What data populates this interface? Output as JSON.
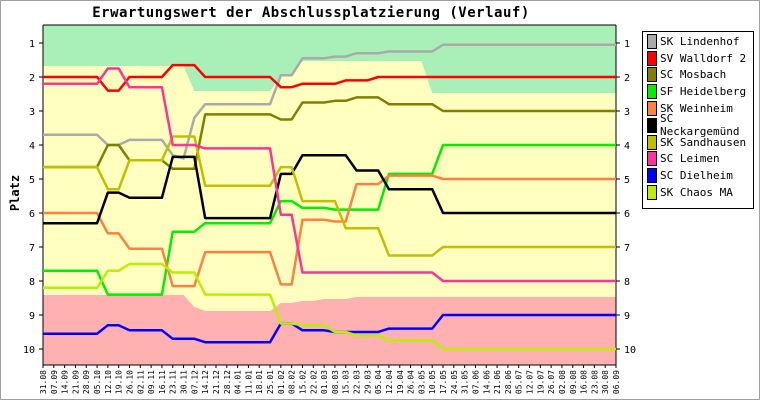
{
  "chart_data": {
    "type": "line",
    "title": "Erwartungswert der Abschlussplatzierung (Verlauf)",
    "ylabel": "Platz",
    "xlabel": "",
    "ylim": [
      1,
      10
    ],
    "y_inverted": true,
    "y_ticks": [
      "1",
      "2",
      "3",
      "4",
      "5",
      "6",
      "7",
      "8",
      "9",
      "10"
    ],
    "grid": false,
    "legend_position": "right",
    "zones": [
      {
        "color": "#a8f0b8",
        "from_y": 0.5,
        "to_y": "top_band"
      },
      {
        "color": "#ffffc0",
        "note": "mid band"
      },
      {
        "color": "#ffb0b0",
        "from_y": "bottom_band",
        "to_y": 10.5
      }
    ],
    "x": [
      "31.08",
      "07.09",
      "14.09",
      "21.09",
      "28.09",
      "05.10",
      "12.10",
      "19.10",
      "26.10",
      "02.11",
      "09.11",
      "16.11",
      "23.11",
      "30.11",
      "07.12",
      "14.12",
      "21.12",
      "28.12",
      "04.01",
      "11.01",
      "18.01",
      "25.01",
      "01.02",
      "08.02",
      "15.02",
      "22.02",
      "01.03",
      "08.03",
      "15.03",
      "22.03",
      "29.03",
      "05.04",
      "12.04",
      "19.04",
      "26.04",
      "03.05",
      "10.05",
      "17.05",
      "24.05",
      "31.05",
      "07.06",
      "14.06",
      "21.06",
      "28.06",
      "05.07",
      "12.07",
      "19.07",
      "26.07",
      "02.08",
      "09.08",
      "16.08",
      "23.08",
      "30.08",
      "06.09"
    ],
    "series": [
      {
        "name": "SK Lindenhof",
        "color": "#aaaaaa",
        "values": [
          3.7,
          3.7,
          3.7,
          3.7,
          3.7,
          3.7,
          4.0,
          4.0,
          3.85,
          3.85,
          3.85,
          3.85,
          4.3,
          4.4,
          3.2,
          2.8,
          2.8,
          2.8,
          2.8,
          2.8,
          2.8,
          2.8,
          1.95,
          1.95,
          1.45,
          1.45,
          1.45,
          1.4,
          1.4,
          1.3,
          1.3,
          1.3,
          1.25,
          1.25,
          1.25,
          1.25,
          1.25,
          1.05,
          1.05,
          1.05,
          1.05,
          1.05,
          1.05,
          1.05,
          1.05,
          1.05,
          1.05,
          1.05,
          1.05,
          1.05,
          1.05,
          1.05,
          1.05,
          1.05
        ]
      },
      {
        "name": "SV Walldorf 2",
        "color": "#ff0000",
        "values": [
          2.0,
          2.0,
          2.0,
          2.0,
          2.0,
          2.0,
          2.4,
          2.4,
          2.0,
          2.0,
          2.0,
          2.0,
          1.65,
          1.65,
          1.65,
          2.0,
          2.0,
          2.0,
          2.0,
          2.0,
          2.0,
          2.0,
          2.3,
          2.3,
          2.2,
          2.2,
          2.2,
          2.2,
          2.1,
          2.1,
          2.1,
          2.0,
          2.0,
          2.0,
          2.0,
          2.0,
          2.0,
          2.0,
          2.0,
          2.0,
          2.0,
          2.0,
          2.0,
          2.0,
          2.0,
          2.0,
          2.0,
          2.0,
          2.0,
          2.0,
          2.0,
          2.0,
          2.0,
          2.0
        ]
      },
      {
        "name": "SC Mosbach",
        "color": "#808000",
        "values": [
          4.65,
          4.65,
          4.65,
          4.65,
          4.65,
          4.65,
          4.0,
          4.0,
          4.45,
          4.45,
          4.45,
          4.45,
          4.7,
          4.7,
          4.7,
          3.1,
          3.1,
          3.1,
          3.1,
          3.1,
          3.1,
          3.1,
          3.25,
          3.25,
          2.75,
          2.75,
          2.75,
          2.7,
          2.7,
          2.6,
          2.6,
          2.6,
          2.8,
          2.8,
          2.8,
          2.8,
          2.8,
          3.0,
          3.0,
          3.0,
          3.0,
          3.0,
          3.0,
          3.0,
          3.0,
          3.0,
          3.0,
          3.0,
          3.0,
          3.0,
          3.0,
          3.0,
          3.0,
          3.0
        ]
      },
      {
        "name": "SF Heidelberg",
        "color": "#00ee00",
        "values": [
          7.7,
          7.7,
          7.7,
          7.7,
          7.7,
          7.7,
          8.4,
          8.4,
          8.4,
          8.4,
          8.4,
          8.4,
          6.55,
          6.55,
          6.55,
          6.3,
          6.3,
          6.3,
          6.3,
          6.3,
          6.3,
          6.3,
          5.65,
          5.65,
          5.85,
          5.85,
          5.85,
          5.9,
          5.9,
          5.9,
          5.9,
          5.9,
          4.85,
          4.85,
          4.85,
          4.85,
          4.85,
          4.0,
          4.0,
          4.0,
          4.0,
          4.0,
          4.0,
          4.0,
          4.0,
          4.0,
          4.0,
          4.0,
          4.0,
          4.0,
          4.0,
          4.0,
          4.0,
          4.0
        ]
      },
      {
        "name": "SK Weinheim",
        "color": "#ff8040",
        "values": [
          6.0,
          6.0,
          6.0,
          6.0,
          6.0,
          6.0,
          6.6,
          6.6,
          7.05,
          7.05,
          7.05,
          7.05,
          8.15,
          8.15,
          8.15,
          7.15,
          7.15,
          7.15,
          7.15,
          7.15,
          7.15,
          7.15,
          8.1,
          8.1,
          6.2,
          6.2,
          6.2,
          6.25,
          6.25,
          5.15,
          5.15,
          5.15,
          4.9,
          4.9,
          4.9,
          4.9,
          4.9,
          5.0,
          5.0,
          5.0,
          5.0,
          5.0,
          5.0,
          5.0,
          5.0,
          5.0,
          5.0,
          5.0,
          5.0,
          5.0,
          5.0,
          5.0,
          5.0,
          5.0
        ]
      },
      {
        "name": "SC Neckargemünd",
        "color": "#000000",
        "values": [
          6.3,
          6.3,
          6.3,
          6.3,
          6.3,
          6.3,
          5.4,
          5.4,
          5.55,
          5.55,
          5.55,
          5.55,
          4.35,
          4.35,
          4.35,
          6.15,
          6.15,
          6.15,
          6.15,
          6.15,
          6.15,
          6.15,
          4.85,
          4.85,
          4.3,
          4.3,
          4.3,
          4.3,
          4.3,
          4.75,
          4.75,
          4.75,
          5.3,
          5.3,
          5.3,
          5.3,
          5.3,
          6.0,
          6.0,
          6.0,
          6.0,
          6.0,
          6.0,
          6.0,
          6.0,
          6.0,
          6.0,
          6.0,
          6.0,
          6.0,
          6.0,
          6.0,
          6.0,
          6.0
        ]
      },
      {
        "name": "SK Sandhausen",
        "color": "#c0c000",
        "values": [
          4.65,
          4.65,
          4.65,
          4.65,
          4.65,
          4.65,
          5.3,
          5.3,
          4.45,
          4.45,
          4.45,
          4.45,
          3.75,
          3.75,
          3.75,
          5.2,
          5.2,
          5.2,
          5.2,
          5.2,
          5.2,
          5.2,
          4.65,
          4.65,
          5.65,
          5.65,
          5.65,
          5.65,
          6.45,
          6.45,
          6.45,
          6.45,
          7.25,
          7.25,
          7.25,
          7.25,
          7.25,
          7.0,
          7.0,
          7.0,
          7.0,
          7.0,
          7.0,
          7.0,
          7.0,
          7.0,
          7.0,
          7.0,
          7.0,
          7.0,
          7.0,
          7.0,
          7.0,
          7.0
        ]
      },
      {
        "name": "SC Leimen",
        "color": "#ff3399",
        "values": [
          2.2,
          2.2,
          2.2,
          2.2,
          2.2,
          2.2,
          1.75,
          1.75,
          2.3,
          2.3,
          2.3,
          2.3,
          4.0,
          4.0,
          4.0,
          4.1,
          4.1,
          4.1,
          4.1,
          4.1,
          4.1,
          4.1,
          6.05,
          6.05,
          7.75,
          7.75,
          7.75,
          7.75,
          7.75,
          7.75,
          7.75,
          7.75,
          7.75,
          7.75,
          7.75,
          7.75,
          7.75,
          8.0,
          8.0,
          8.0,
          8.0,
          8.0,
          8.0,
          8.0,
          8.0,
          8.0,
          8.0,
          8.0,
          8.0,
          8.0,
          8.0,
          8.0,
          8.0,
          8.0
        ]
      },
      {
        "name": "SC Dielheim",
        "color": "#0000ff",
        "values": [
          9.55,
          9.55,
          9.55,
          9.55,
          9.55,
          9.55,
          9.3,
          9.3,
          9.45,
          9.45,
          9.45,
          9.45,
          9.7,
          9.7,
          9.7,
          9.8,
          9.8,
          9.8,
          9.8,
          9.8,
          9.8,
          9.8,
          9.25,
          9.25,
          9.45,
          9.45,
          9.45,
          9.5,
          9.5,
          9.5,
          9.5,
          9.5,
          9.4,
          9.4,
          9.4,
          9.4,
          9.4,
          9.0,
          9.0,
          9.0,
          9.0,
          9.0,
          9.0,
          9.0,
          9.0,
          9.0,
          9.0,
          9.0,
          9.0,
          9.0,
          9.0,
          9.0,
          9.0,
          9.0
        ]
      },
      {
        "name": "SK Chaos MA",
        "color": "#bbee00",
        "values": [
          8.2,
          8.2,
          8.2,
          8.2,
          8.2,
          8.2,
          7.7,
          7.7,
          7.5,
          7.5,
          7.5,
          7.5,
          7.75,
          7.75,
          7.75,
          8.4,
          8.4,
          8.4,
          8.4,
          8.4,
          8.4,
          8.4,
          9.25,
          9.25,
          9.3,
          9.3,
          9.3,
          9.5,
          9.5,
          9.6,
          9.6,
          9.6,
          9.75,
          9.75,
          9.75,
          9.75,
          9.75,
          10.0,
          10.0,
          10.0,
          10.0,
          10.0,
          10.0,
          10.0,
          10.0,
          10.0,
          10.0,
          10.0,
          10.0,
          10.0,
          10.0,
          10.0,
          10.0,
          10.0
        ]
      }
    ]
  }
}
